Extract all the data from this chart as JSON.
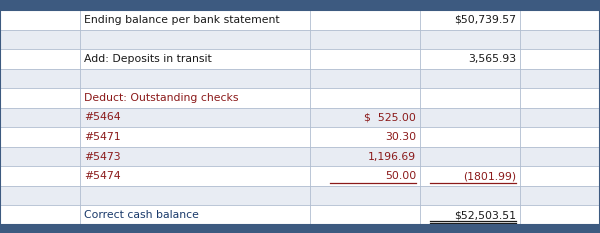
{
  "title_bar_color": "#3d5a80",
  "background_color": "#f5f7fa",
  "cell_bg_white": "#ffffff",
  "cell_bg_light": "#e8ecf3",
  "text_color_dark": "#1a1a1a",
  "text_color_red": "#8b1a1a",
  "text_color_blue": "#1a3a6b",
  "border_color": "#b0bdd0",
  "outer_border_color": "#3d5a80",
  "rows": [
    {
      "col1": "Ending balance per bank statement",
      "col2": "",
      "col3": "$50,739.57",
      "col1_color": "dark",
      "col3_color": "dark",
      "underline_col2": false,
      "underline_col3": false,
      "double_underline_col3": false
    },
    {
      "col1": "",
      "col2": "",
      "col3": "",
      "col1_color": "dark",
      "col3_color": "dark",
      "underline_col2": false,
      "underline_col3": false,
      "double_underline_col3": false
    },
    {
      "col1": "Add: Deposits in transit",
      "col2": "",
      "col3": "3,565.93",
      "col1_color": "dark",
      "col3_color": "dark",
      "underline_col2": false,
      "underline_col3": false,
      "double_underline_col3": false
    },
    {
      "col1": "",
      "col2": "",
      "col3": "",
      "col1_color": "dark",
      "col3_color": "dark",
      "underline_col2": false,
      "underline_col3": false,
      "double_underline_col3": false
    },
    {
      "col1": "Deduct: Outstanding checks",
      "col2": "",
      "col3": "",
      "col1_color": "red",
      "col3_color": "dark",
      "underline_col2": false,
      "underline_col3": false,
      "double_underline_col3": false
    },
    {
      "col1": "#5464",
      "col2": "$  525.00",
      "col3": "",
      "col1_color": "red",
      "col3_color": "dark",
      "underline_col2": false,
      "underline_col3": false,
      "double_underline_col3": false
    },
    {
      "col1": "#5471",
      "col2": "30.30",
      "col3": "",
      "col1_color": "red",
      "col3_color": "dark",
      "underline_col2": false,
      "underline_col3": false,
      "double_underline_col3": false
    },
    {
      "col1": "#5473",
      "col2": "1,196.69",
      "col3": "",
      "col1_color": "red",
      "col3_color": "dark",
      "underline_col2": false,
      "underline_col3": false,
      "double_underline_col3": false
    },
    {
      "col1": "#5474",
      "col2": "50.00",
      "col3": "(1801.99)",
      "col1_color": "red",
      "col3_color": "red",
      "underline_col2": true,
      "underline_col3": true,
      "double_underline_col3": false
    },
    {
      "col1": "",
      "col2": "",
      "col3": "",
      "col1_color": "dark",
      "col3_color": "dark",
      "underline_col2": false,
      "underline_col3": false,
      "double_underline_col3": false
    },
    {
      "col1": "Correct cash balance",
      "col2": "",
      "col3": "$52,503.51",
      "col1_color": "blue",
      "col3_color": "dark",
      "underline_col2": false,
      "underline_col3": false,
      "double_underline_col3": true
    }
  ],
  "col_bounds": [
    0,
    80,
    310,
    420,
    520,
    600
  ],
  "top_bar_height": 10,
  "bottom_bar_height": 8,
  "fontsize": 7.8
}
